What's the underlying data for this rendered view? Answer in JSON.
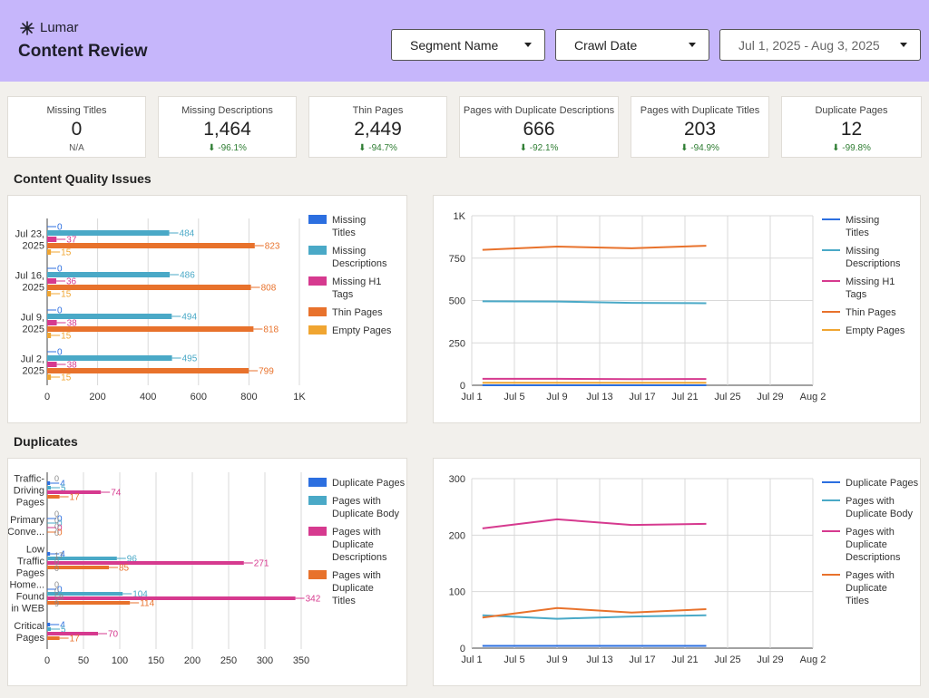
{
  "app": {
    "logo_text": "Lumar",
    "title": "Content Review"
  },
  "filters": {
    "segment": "Segment Name",
    "crawl_date": "Crawl Date",
    "date_range": "Jul 1, 2025 - Aug 3, 2025"
  },
  "kpis": [
    {
      "label": "Missing Titles",
      "value": "0",
      "change": "N/A"
    },
    {
      "label": "Missing Descriptions",
      "value": "1,464",
      "change": "-96.1%"
    },
    {
      "label": "Thin Pages",
      "value": "2,449",
      "change": "-94.7%"
    },
    {
      "label": "Pages with Duplicate Descriptions",
      "value": "666",
      "change": "-92.1%"
    },
    {
      "label": "Pages with Duplicate Titles",
      "value": "203",
      "change": "-94.9%"
    },
    {
      "label": "Duplicate Pages",
      "value": "12",
      "change": "-99.8%"
    }
  ],
  "sections": {
    "content_quality": "Content Quality Issues",
    "duplicates": "Duplicates"
  },
  "colors": {
    "header_bg": "#c6b6fb",
    "positive_change": "#2e7d32",
    "blue": "#2c6fe0",
    "teal": "#4aa9c7",
    "pink": "#d63a8f",
    "orange": "#e8722c",
    "amber": "#f0a531"
  },
  "chart_data": [
    {
      "id": "quality_bar",
      "type": "bar",
      "orientation": "horizontal",
      "categories": [
        [
          "Jul 23,",
          "2025"
        ],
        [
          "Jul 16,",
          "2025"
        ],
        [
          "Jul 9,",
          "2025"
        ],
        [
          "Jul 2,",
          "2025"
        ]
      ],
      "series": [
        {
          "name": "Missing Titles",
          "color": "#2c6fe0",
          "values": [
            0,
            0,
            0,
            0
          ]
        },
        {
          "name": "Missing Descriptions",
          "color": "#4aa9c7",
          "values": [
            484,
            486,
            494,
            495
          ]
        },
        {
          "name": "Missing H1 Tags",
          "color": "#d63a8f",
          "values": [
            37,
            36,
            38,
            38
          ]
        },
        {
          "name": "Thin Pages",
          "color": "#e8722c",
          "values": [
            823,
            808,
            818,
            799
          ]
        },
        {
          "name": "Empty Pages",
          "color": "#f0a531",
          "values": [
            15,
            15,
            15,
            15
          ]
        }
      ],
      "xlim": [
        0,
        1000
      ],
      "ticks": [
        0,
        200,
        400,
        600,
        800,
        1000
      ],
      "tick_labels": [
        "0",
        "200",
        "400",
        "600",
        "800",
        "1K"
      ],
      "legend": [
        "Missing Titles",
        "Missing Descriptions",
        "Missing H1 Tags",
        "Thin Pages",
        "Empty Pages"
      ]
    },
    {
      "id": "quality_line",
      "type": "line",
      "x": [
        "Jul 2",
        "Jul 9",
        "Jul 16",
        "Jul 23"
      ],
      "x_day": [
        2,
        9,
        16,
        23
      ],
      "x_ticks_day": [
        1,
        5,
        9,
        13,
        17,
        21,
        25,
        29,
        33
      ],
      "x_tick_labels": [
        "Jul 1",
        "Jul 5",
        "Jul 9",
        "Jul 13",
        "Jul 17",
        "Jul 21",
        "Jul 25",
        "Jul 29",
        "Aug 2"
      ],
      "series": [
        {
          "name": "Missing Titles",
          "color": "#2c6fe0",
          "values": [
            0,
            0,
            0,
            0
          ]
        },
        {
          "name": "Missing Descriptions",
          "color": "#4aa9c7",
          "values": [
            495,
            494,
            486,
            484
          ]
        },
        {
          "name": "Missing H1 Tags",
          "color": "#d63a8f",
          "values": [
            38,
            38,
            36,
            37
          ]
        },
        {
          "name": "Thin Pages",
          "color": "#e8722c",
          "values": [
            799,
            818,
            808,
            823
          ]
        },
        {
          "name": "Empty Pages",
          "color": "#f0a531",
          "values": [
            15,
            15,
            15,
            15
          ]
        }
      ],
      "ylim": [
        0,
        1000
      ],
      "y_ticks": [
        0,
        250,
        500,
        750,
        1000
      ],
      "y_tick_labels": [
        "0",
        "250",
        "500",
        "750",
        "1K"
      ],
      "legend": [
        "Missing Titles",
        "Missing Descriptions",
        "Missing H1 Tags",
        "Thin Pages",
        "Empty Pages"
      ]
    },
    {
      "id": "dup_bar",
      "type": "bar",
      "orientation": "horizontal",
      "categories": [
        [
          "Traffic-",
          "Driving",
          "Pages"
        ],
        [
          "Primary",
          "Conve..."
        ],
        [
          "Low",
          "Traffic",
          "Pages"
        ],
        [
          "Home...",
          "Found",
          "in WEB"
        ],
        [
          "Critical",
          "Pages"
        ]
      ],
      "series": [
        {
          "name": "Duplicate Pages",
          "color": "#2c6fe0",
          "values": [
            4,
            0,
            4,
            0,
            4
          ]
        },
        {
          "name": "Pages with Duplicate Body",
          "color": "#4aa9c7",
          "values": [
            5,
            0,
            96,
            104,
            5
          ]
        },
        {
          "name": "Pages with Duplicate Descriptions",
          "color": "#d63a8f",
          "values": [
            74,
            0,
            271,
            342,
            70
          ]
        },
        {
          "name": "Pages with Duplicate Titles",
          "color": "#e8722c",
          "values": [
            17,
            0,
            85,
            114,
            17
          ]
        }
      ],
      "extra_labels": [
        {
          "category": 0,
          "text": "0"
        },
        {
          "category": 1,
          "text": "0"
        },
        {
          "category": 1,
          "text": "0"
        },
        {
          "category": 1,
          "text": "0"
        },
        {
          "category": 1,
          "text": "0"
        },
        {
          "category": 2,
          "text": "17"
        },
        {
          "category": 2,
          "text": "0"
        },
        {
          "category": 2,
          "text": "0"
        },
        {
          "category": 3,
          "text": "0"
        },
        {
          "category": 3,
          "text": "0"
        },
        {
          "category": 3,
          "text": "58"
        },
        {
          "category": 3,
          "text": "9"
        }
      ],
      "xlim": [
        0,
        360
      ],
      "ticks": [
        0,
        50,
        100,
        150,
        200,
        250,
        300,
        350
      ],
      "tick_labels": [
        "0",
        "50",
        "100",
        "150",
        "200",
        "250",
        "300",
        "350"
      ],
      "legend": [
        "Duplicate Pages",
        "Pages with Duplicate Body",
        "Pages with Duplicate Descriptions",
        "Pages with Duplicate Titles"
      ]
    },
    {
      "id": "dup_line",
      "type": "line",
      "x": [
        "Jul 2",
        "Jul 9",
        "Jul 16",
        "Jul 23"
      ],
      "x_day": [
        2,
        9,
        16,
        23
      ],
      "x_ticks_day": [
        1,
        5,
        9,
        13,
        17,
        21,
        25,
        29,
        33
      ],
      "x_tick_labels": [
        "Jul 1",
        "Jul 5",
        "Jul 9",
        "Jul 13",
        "Jul 17",
        "Jul 21",
        "Jul 25",
        "Jul 29",
        "Aug 2"
      ],
      "series": [
        {
          "name": "Duplicate Pages",
          "color": "#2c6fe0",
          "values": [
            4,
            4,
            4,
            4
          ]
        },
        {
          "name": "Pages with Duplicate Body",
          "color": "#4aa9c7",
          "values": [
            58,
            52,
            56,
            58
          ]
        },
        {
          "name": "Pages with Duplicate Descriptions",
          "color": "#d63a8f",
          "values": [
            212,
            228,
            218,
            220
          ]
        },
        {
          "name": "Pages with Duplicate Titles",
          "color": "#e8722c",
          "values": [
            54,
            71,
            63,
            69
          ]
        }
      ],
      "ylim": [
        0,
        300
      ],
      "y_ticks": [
        0,
        100,
        200,
        300
      ],
      "y_tick_labels": [
        "0",
        "100",
        "200",
        "300"
      ],
      "legend": [
        "Duplicate Pages",
        "Pages with Duplicate Body",
        "Pages with Duplicate Descriptions",
        "Pages with Duplicate Titles"
      ]
    }
  ]
}
